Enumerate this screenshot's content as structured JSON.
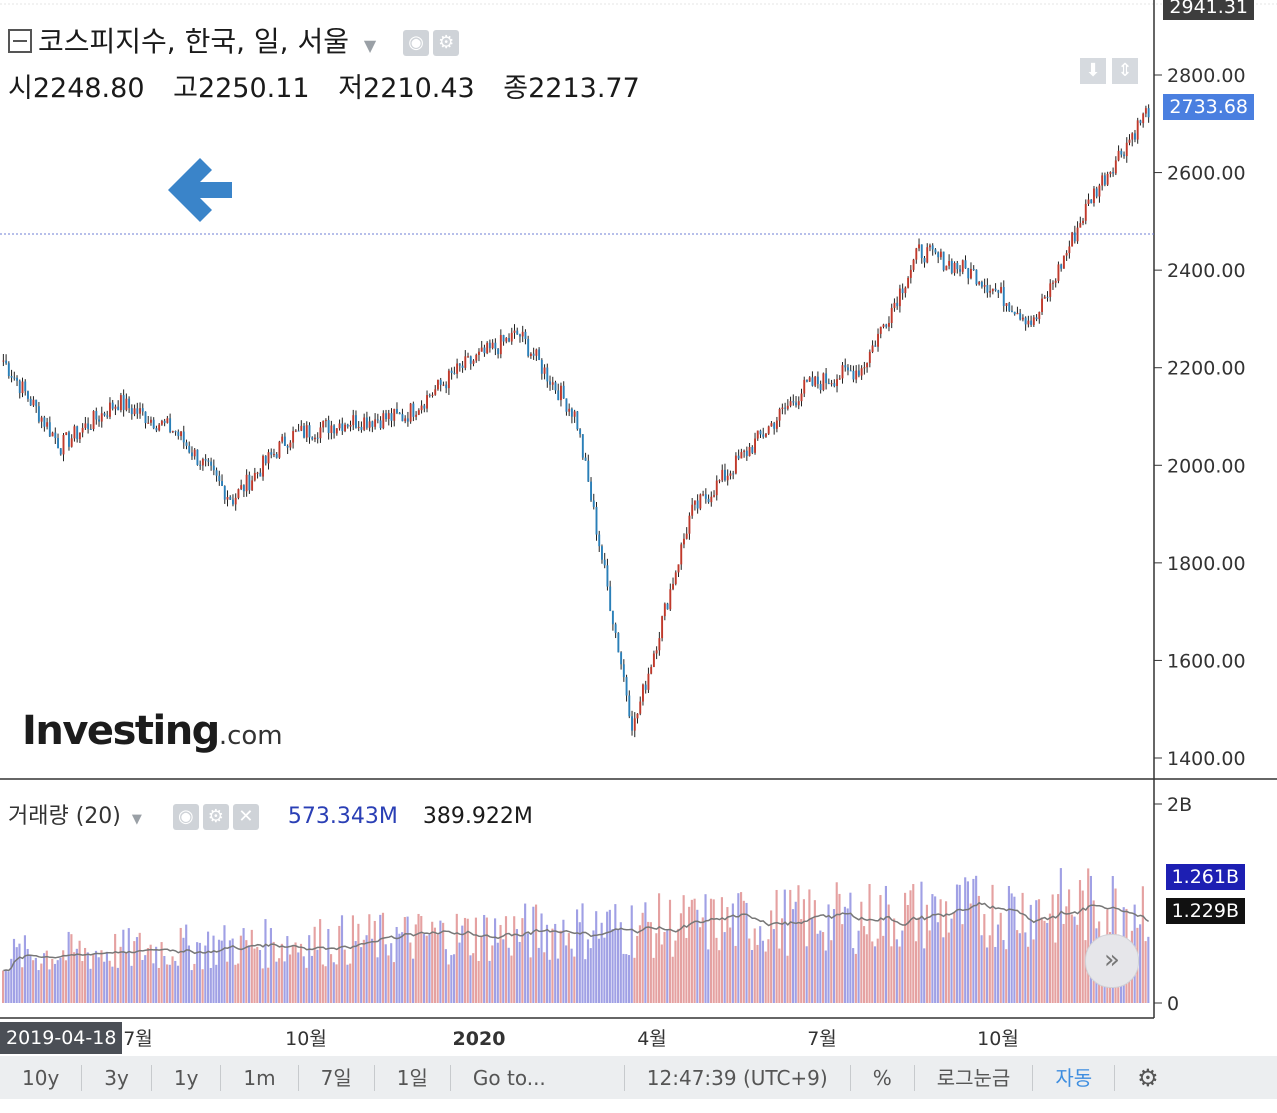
{
  "header": {
    "collapse_icon": "minus-square-icon",
    "title": "코스피지수, 한국, 일, 서울",
    "open_label": "시",
    "open_value": "2248.80",
    "high_label": "고",
    "high_value": "2250.11",
    "low_label": "저",
    "low_value": "2210.43",
    "close_label": "종",
    "close_value": "2213.77"
  },
  "price_axis": {
    "top_label": "2941.31",
    "ticks": [
      "2800.00",
      "2600.00",
      "2400.00",
      "2200.00",
      "2000.00",
      "1800.00",
      "1600.00",
      "1400.00"
    ],
    "last_price": "2733.68"
  },
  "volume": {
    "title": "거래량 (20)",
    "value1": "573.343M",
    "value2": "389.922M",
    "axis_ticks": [
      "2B",
      "0"
    ],
    "tag1": "1.261B",
    "tag2": "1.229B"
  },
  "x_axis": {
    "start_date": "2019-04-18",
    "labels": [
      "7월",
      "10월",
      "2020",
      "4월",
      "7월",
      "10월"
    ]
  },
  "watermark": {
    "brand": "Investing",
    "suffix": ".com"
  },
  "toolbar": {
    "buttons": [
      "10y",
      "3y",
      "1y",
      "1m",
      "7일",
      "1일",
      "Go to..."
    ],
    "time": "12:47:39 (UTC+9)",
    "percent": "%",
    "log": "로그눈금",
    "auto": "자동",
    "settings_icon": "gear-icon"
  },
  "colors": {
    "up": "#c0392b",
    "down": "#2a7fb8",
    "accent": "#4a7fe0",
    "vol_up": "#e09090",
    "vol_down": "#8f8fe0"
  },
  "chart_data": {
    "type": "candlestick",
    "title": "코스피지수, 한국, 일, 서울",
    "x": [
      "2019-04",
      "2019-05",
      "2019-06",
      "2019-07",
      "2019-08",
      "2019-09",
      "2019-10",
      "2019-11",
      "2019-12",
      "2020-01",
      "2020-02",
      "2020-03",
      "2020-04",
      "2020-05",
      "2020-06",
      "2020-07",
      "2020-08",
      "2020-09",
      "2020-10",
      "2020-11",
      "2020-12"
    ],
    "close": [
      2215,
      2040,
      2130,
      2070,
      1930,
      2060,
      2090,
      2100,
      2200,
      2270,
      2100,
      1460,
      1900,
      2030,
      2160,
      2200,
      2440,
      2390,
      2290,
      2550,
      2730
    ],
    "ylim": [
      1400,
      2941.31
    ],
    "y_ticks": [
      1400,
      1600,
      1800,
      2000,
      2200,
      2400,
      2600,
      2800
    ],
    "volume_ylim": [
      0,
      2000000000
    ]
  }
}
